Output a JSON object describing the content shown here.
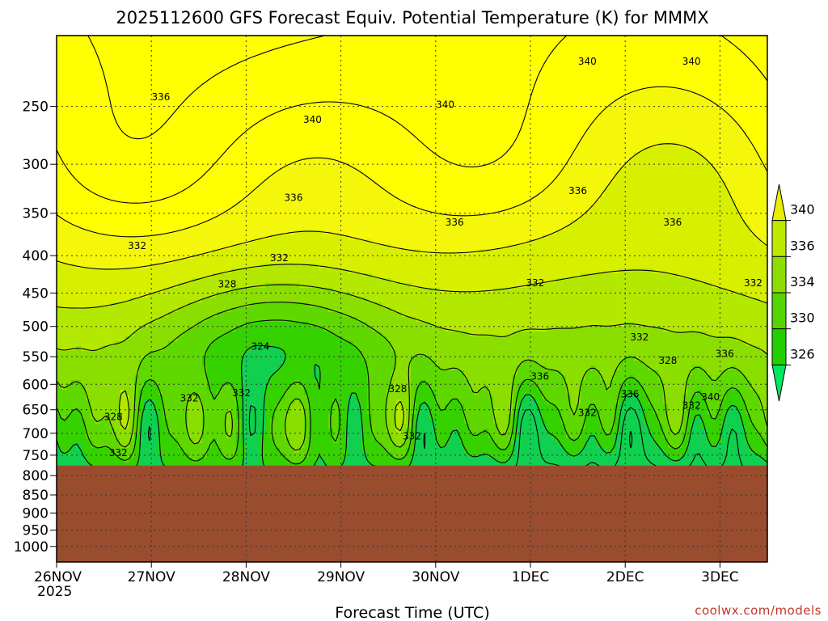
{
  "chart_data": {
    "type": "heatmap",
    "title": "2025112600 GFS Forecast Equiv. Potential Temperature (K) for MMMX",
    "xlabel": "Forecast Time (UTC)",
    "ylabel": "",
    "x_ticks": [
      "26NOV",
      "27NOV",
      "28NOV",
      "29NOV",
      "30NOV",
      "1DEC",
      "2DEC",
      "3DEC"
    ],
    "x_tick_year": "2025",
    "y_ticks": [
      250,
      300,
      350,
      400,
      450,
      500,
      550,
      600,
      650,
      700,
      750,
      800,
      850,
      900,
      950,
      1000
    ],
    "y_scale": "log-pressure",
    "y_range_hPa": [
      200,
      1050
    ],
    "x_range_days": [
      0,
      7.5
    ],
    "surface_pressure_hPa": 775,
    "grid": true,
    "colorbar": {
      "ticks": [
        340,
        336,
        334,
        330,
        326
      ],
      "colors": [
        "#e8f000",
        "#bde800",
        "#8fdc00",
        "#55d400",
        "#22d000",
        "#00e860"
      ]
    },
    "levels": [
      {
        "min": 338,
        "color": "#ffff00"
      },
      {
        "min": 336,
        "color": "#f4f70a"
      },
      {
        "min": 334,
        "color": "#d7f000"
      },
      {
        "min": 332,
        "color": "#b3e800"
      },
      {
        "min": 330,
        "color": "#8adf00"
      },
      {
        "min": 328,
        "color": "#5fd800"
      },
      {
        "min": 326,
        "color": "#35d200"
      },
      {
        "min": 0,
        "color": "#10d050"
      }
    ],
    "contour_labels": [
      {
        "value": 340,
        "t": 2.7,
        "p": 262
      },
      {
        "value": 340,
        "t": 4.1,
        "p": 250
      },
      {
        "value": 340,
        "t": 5.6,
        "p": 218
      },
      {
        "value": 340,
        "t": 6.7,
        "p": 218
      },
      {
        "value": 336,
        "t": 1.1,
        "p": 244
      },
      {
        "value": 336,
        "t": 2.5,
        "p": 335
      },
      {
        "value": 336,
        "t": 4.2,
        "p": 362
      },
      {
        "value": 336,
        "t": 5.5,
        "p": 328
      },
      {
        "value": 336,
        "t": 6.5,
        "p": 362
      },
      {
        "value": 336,
        "t": 5.1,
        "p": 588
      },
      {
        "value": 336,
        "t": 6.05,
        "p": 622
      },
      {
        "value": 336,
        "t": 7.05,
        "p": 548
      },
      {
        "value": 340,
        "t": 6.9,
        "p": 628
      },
      {
        "value": 332,
        "t": 0.85,
        "p": 390
      },
      {
        "value": 332,
        "t": 2.35,
        "p": 405
      },
      {
        "value": 332,
        "t": 5.05,
        "p": 438
      },
      {
        "value": 332,
        "t": 7.35,
        "p": 438
      },
      {
        "value": 332,
        "t": 1.4,
        "p": 630
      },
      {
        "value": 332,
        "t": 1.95,
        "p": 620
      },
      {
        "value": 332,
        "t": 0.65,
        "p": 748
      },
      {
        "value": 332,
        "t": 3.75,
        "p": 710
      },
      {
        "value": 332,
        "t": 5.6,
        "p": 660
      },
      {
        "value": 332,
        "t": 6.15,
        "p": 520
      },
      {
        "value": 332,
        "t": 6.7,
        "p": 645
      },
      {
        "value": 328,
        "t": 1.8,
        "p": 440
      },
      {
        "value": 328,
        "t": 0.6,
        "p": 668
      },
      {
        "value": 328,
        "t": 3.6,
        "p": 612
      },
      {
        "value": 328,
        "t": 6.45,
        "p": 560
      },
      {
        "value": 324,
        "t": 2.15,
        "p": 535
      }
    ]
  },
  "credit": "coolwx.com/models"
}
